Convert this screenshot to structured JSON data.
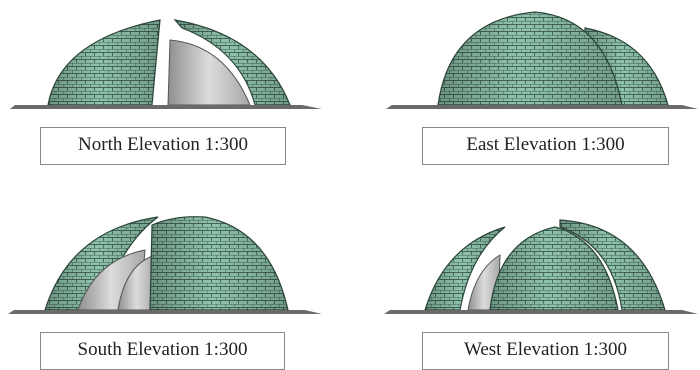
{
  "colors": {
    "shell": "#8fc4ac",
    "shell_dark": "#5a8c74",
    "grid": "#2f4a3e",
    "interior": "#c9c9c9",
    "base": "#6a6a6a"
  },
  "elevations": [
    {
      "id": "north",
      "label": "North Elevation  1:300"
    },
    {
      "id": "east",
      "label": "East Elevation  1:300"
    },
    {
      "id": "south",
      "label": "South Elevation  1:300"
    },
    {
      "id": "west",
      "label": "West Elevation  1:300"
    }
  ]
}
